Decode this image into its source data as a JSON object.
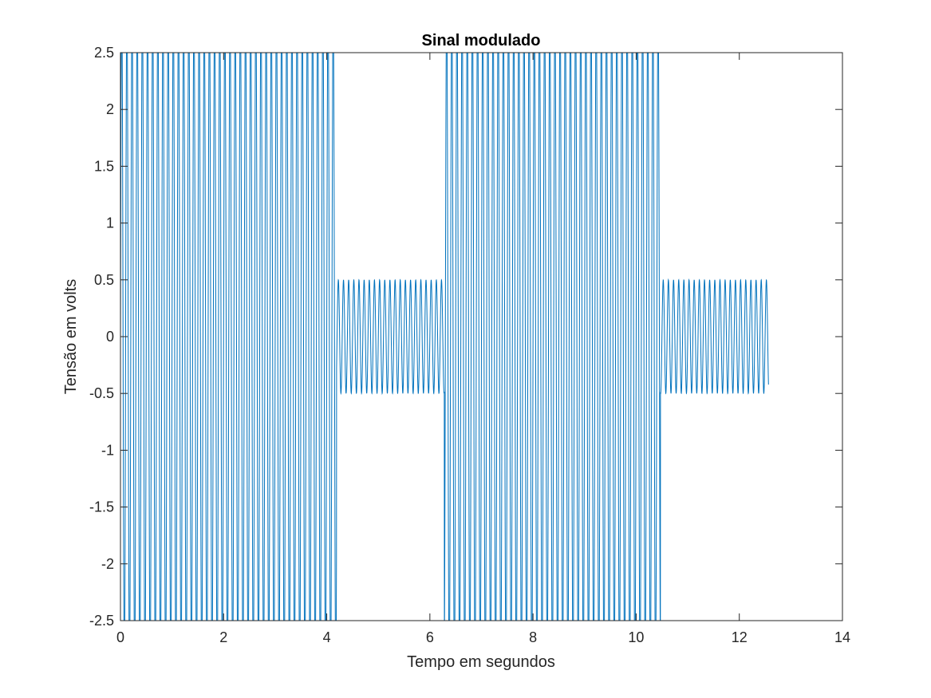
{
  "chart_data": {
    "type": "line",
    "title": "Sinal modulado",
    "xlabel": "Tempo em segundos",
    "ylabel": "Tensão em volts",
    "xlim": [
      0,
      14
    ],
    "ylim": [
      -2.5,
      2.5
    ],
    "xticks": [
      0,
      2,
      4,
      6,
      8,
      10,
      12,
      14
    ],
    "xtick_labels": [
      "0",
      "2",
      "4",
      "6",
      "8",
      "10",
      "12",
      "14"
    ],
    "yticks": [
      -2.5,
      -2,
      -1.5,
      -1,
      -0.5,
      0,
      0.5,
      1,
      1.5,
      2,
      2.5
    ],
    "ytick_labels": [
      "-2.5",
      "-2",
      "-1.5",
      "-1",
      "-0.5",
      "0",
      "0.5",
      "1",
      "1.5",
      "2",
      "2.5"
    ],
    "grid": false,
    "series": [
      {
        "color": "#0072BD",
        "signal": "amplitude-modulated sinusoid",
        "carrier_cycles_per_second": 10,
        "t_start": 0,
        "t_end": 12.566,
        "segments": [
          {
            "t_start": 0,
            "t_end": 4.19,
            "amplitude": 3.0
          },
          {
            "t_start": 4.19,
            "t_end": 6.28,
            "amplitude": 0.5
          },
          {
            "t_start": 6.28,
            "t_end": 10.47,
            "amplitude": 3.0
          },
          {
            "t_start": 10.47,
            "t_end": 12.566,
            "amplitude": 0.5
          }
        ]
      }
    ]
  }
}
